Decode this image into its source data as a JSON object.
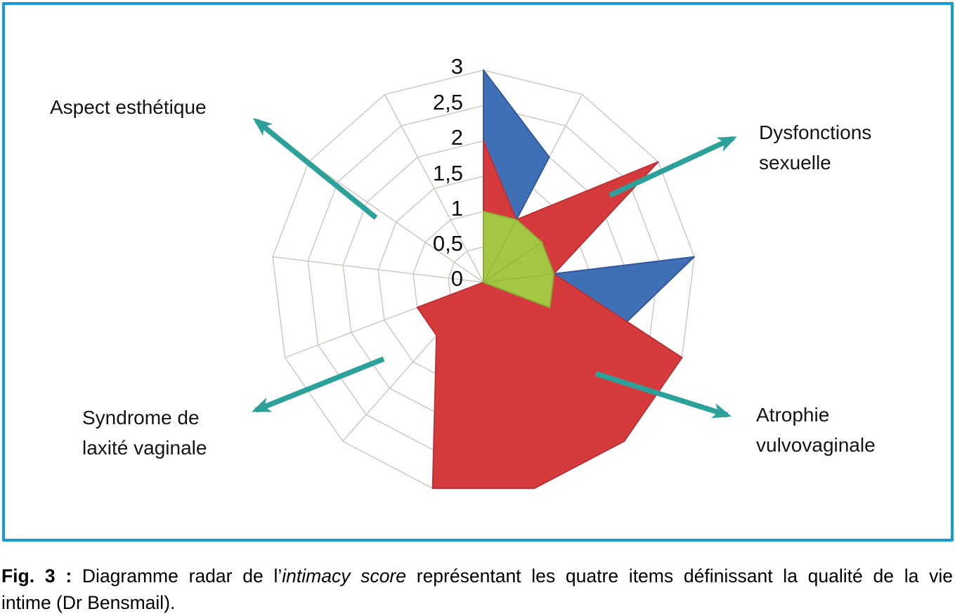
{
  "chart_data": {
    "type": "radar",
    "axes_count": 13,
    "grid": {
      "rings": [
        0.5,
        1,
        1.5,
        2,
        2.5,
        3
      ],
      "spokes": true,
      "color": "#cbc6c0"
    },
    "scale": {
      "min": 0,
      "max": 3,
      "step": 0.5,
      "tick_labels": [
        "0",
        "0,5",
        "1",
        "1,5",
        "2",
        "2,5",
        "3"
      ]
    },
    "series": [
      {
        "name": "serie-bleue",
        "color": "#3f6fb5",
        "edge_color": "#33589b",
        "values": [
          3,
          2,
          0,
          3,
          2,
          0,
          0,
          0,
          0,
          0,
          0,
          0,
          0
        ]
      },
      {
        "name": "serie-rouge",
        "color": "#d53a3d",
        "edge_color": "#bc3136",
        "values": [
          2,
          1,
          3,
          1,
          3,
          3,
          3,
          3,
          1,
          1,
          0,
          0,
          0
        ]
      },
      {
        "name": "serie-verte",
        "color": "#a3c743",
        "edge_color": "#8cb238",
        "values": [
          1,
          1,
          1,
          1,
          1,
          0,
          0,
          0,
          0,
          0,
          0,
          0,
          0
        ]
      }
    ],
    "annotations": [
      {
        "id": "aspect-esthetique",
        "lines": [
          "Aspect esthétique"
        ]
      },
      {
        "id": "dysfonctions-sexuelle",
        "lines": [
          "Dysfonctions",
          "sexuelle"
        ]
      },
      {
        "id": "atrophie-vulvovaginale",
        "lines": [
          "Atrophie",
          "vulvovaginale"
        ]
      },
      {
        "id": "syndrome-laxite-vaginale",
        "lines": [
          "Syndrome de",
          "laxité vaginale"
        ]
      }
    ],
    "arrow_color": "#2ba19a",
    "legend_position": "none"
  },
  "frame_color": "#149bd8",
  "caption": {
    "fig_label": "Fig. 3 :",
    "part1": "Diagramme radar de l’",
    "italic": "intimacy score",
    "part2": " représentant les quatre items définissant la qualité de la vie",
    "line2": "intime (Dr Bensmail)."
  }
}
